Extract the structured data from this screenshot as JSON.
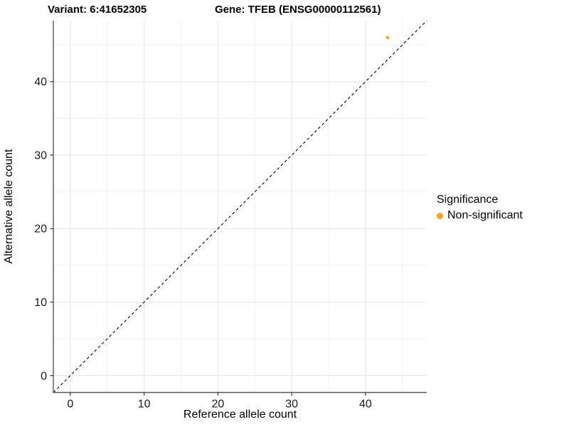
{
  "titles": {
    "variant": "Variant: 6:41652305",
    "gene": "Gene: TFEB (ENSG00000112561)"
  },
  "legend": {
    "title": "Significance",
    "items": [
      {
        "label": "Non-significant",
        "color": "#FFA320"
      }
    ]
  },
  "chart_data": {
    "type": "scatter",
    "xlabel": "Reference allele count",
    "ylabel": "Alternative allele count",
    "xlim": [
      -2.3,
      48.3
    ],
    "ylim": [
      -2.3,
      48.3
    ],
    "x_ticks": [
      0,
      10,
      20,
      30,
      40
    ],
    "y_ticks": [
      0,
      10,
      20,
      30,
      40
    ],
    "x_minor_ticks": [
      5,
      15,
      25,
      35,
      45
    ],
    "y_minor_ticks": [
      5,
      15,
      25,
      35,
      45
    ],
    "grid": true,
    "legend_position": "right",
    "series": [
      {
        "name": "Non-significant",
        "color": "#FFA320",
        "points": [
          {
            "x": 43,
            "y": 46
          }
        ]
      }
    ],
    "reference_line": {
      "slope": 1,
      "intercept": 0,
      "style": "dashed",
      "color": "#000000"
    },
    "colors": {
      "axis_line": "#555555",
      "tick_mark": "#333333",
      "tick_label": "#1a1a1a",
      "grid_major": "#e4e4e4",
      "grid_minor": "#f0f0f0",
      "panel_background": "#ffffff"
    }
  }
}
